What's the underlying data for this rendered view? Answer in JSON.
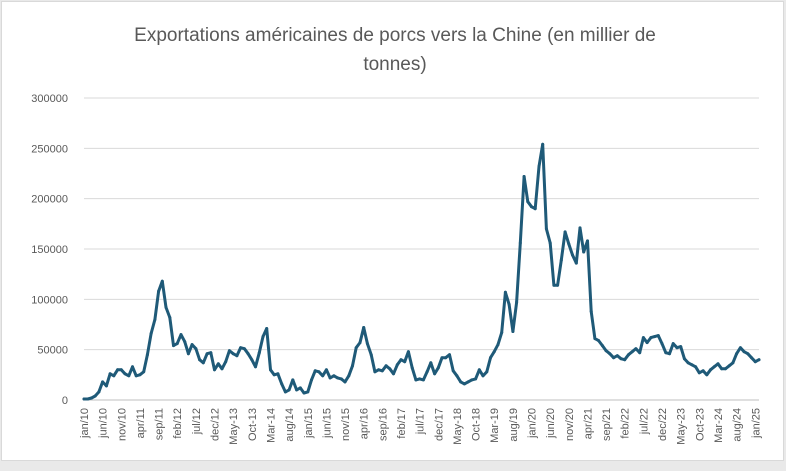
{
  "chart_data": {
    "type": "line",
    "title_lines": [
      "Exportations américaines de porcs vers la Chine (en millier de",
      "tonnes)"
    ],
    "xlabel": "",
    "ylabel": "",
    "ylim": [
      0,
      300000
    ],
    "yticks": [
      0,
      50000,
      100000,
      150000,
      200000,
      250000,
      300000
    ],
    "grid": true,
    "legend": "none",
    "line_color": "#1f5a78",
    "x_tick_labels": [
      "jan/10",
      "jun/10",
      "nov/10",
      "apr/11",
      "sep/11",
      "feb/12",
      "jul/12",
      "dec/12",
      "May-13",
      "Oct-13",
      "Mar-14",
      "aug/14",
      "jan/15",
      "jun/15",
      "nov/15",
      "apr/16",
      "sep/16",
      "feb/17",
      "jul/17",
      "dec/17",
      "May-18",
      "Oct-18",
      "Mar-19",
      "aug/19",
      "jan/20",
      "jun/20",
      "nov/20",
      "apr/21",
      "sep/21",
      "feb/22",
      "jul/22",
      "dec/22",
      "May-23",
      "Oct-23",
      "Mar-24",
      "aug/24",
      "jan/25"
    ],
    "series": [
      {
        "values": [
          1000,
          1000,
          2000,
          4000,
          8000,
          18000,
          14000,
          26000,
          24000,
          30000,
          30000,
          26000,
          24000,
          33000,
          24000,
          25000,
          28000,
          45000,
          66000,
          80000,
          108000,
          118000,
          92000,
          82000,
          54000,
          56000,
          65000,
          58000,
          46000,
          55000,
          51000,
          40000,
          37000,
          46000,
          47000,
          30000,
          36000,
          31000,
          38000,
          49000,
          46000,
          44000,
          52000,
          51000,
          46000,
          40000,
          33000,
          47000,
          63000,
          71000,
          30000,
          25000,
          26000,
          16000,
          8000,
          10000,
          20000,
          10000,
          12000,
          7000,
          8000,
          20000,
          29000,
          28000,
          24000,
          30000,
          22000,
          24000,
          22000,
          21000,
          18000,
          24000,
          34000,
          52000,
          57000,
          72000,
          56000,
          45000,
          28000,
          30000,
          29000,
          34000,
          31000,
          26000,
          35000,
          40000,
          38000,
          48000,
          32000,
          20000,
          21000,
          20000,
          28000,
          37000,
          26000,
          32000,
          42000,
          42000,
          45000,
          29000,
          24000,
          18000,
          16000,
          18000,
          20000,
          21000,
          30000,
          24000,
          28000,
          42000,
          48000,
          55000,
          67000,
          107000,
          95000,
          68000,
          97000,
          156000,
          222000,
          197000,
          192000,
          190000,
          232000,
          254000,
          170000,
          156000,
          114000,
          114000,
          139000,
          167000,
          155000,
          144000,
          136000,
          171000,
          147000,
          158000,
          88000,
          61000,
          59000,
          54000,
          49000,
          46000,
          42000,
          44000,
          41000,
          40000,
          45000,
          48000,
          51000,
          47000,
          62000,
          57000,
          62000,
          63000,
          64000,
          56000,
          47000,
          46000,
          56000,
          52000,
          53000,
          41000,
          37000,
          35000,
          33000,
          27000,
          29000,
          25000,
          30000,
          33000,
          36000,
          31000,
          31000,
          34000,
          37000,
          46000,
          52000,
          48000,
          46000,
          42000,
          38000,
          40000
        ]
      }
    ]
  }
}
